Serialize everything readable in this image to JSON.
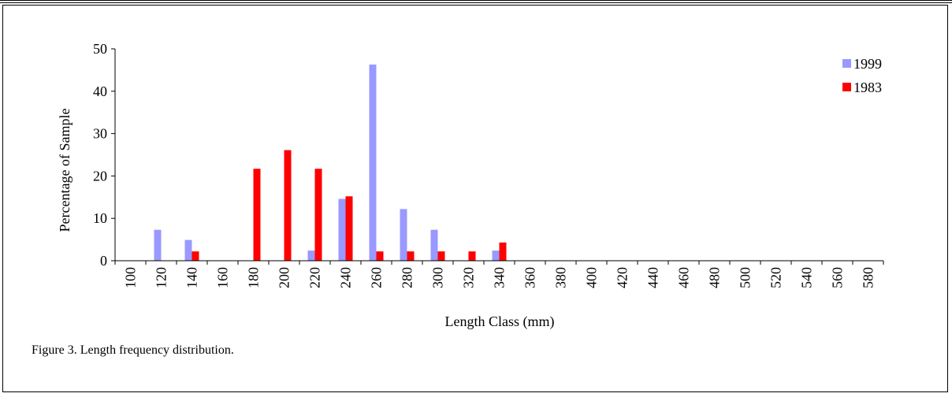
{
  "caption": "Figure 3. Length frequency distribution.",
  "colors": {
    "1999": "#9999ff",
    "1983": "#ff0000"
  },
  "chart_data": {
    "type": "bar",
    "categories": [
      "100",
      "120",
      "140",
      "160",
      "180",
      "200",
      "220",
      "240",
      "260",
      "280",
      "300",
      "320",
      "340",
      "360",
      "380",
      "400",
      "420",
      "440",
      "460",
      "480",
      "500",
      "520",
      "540",
      "560",
      "580"
    ],
    "series": [
      {
        "name": "1999",
        "values": [
          0,
          7.3,
          4.9,
          0,
          0,
          0,
          2.4,
          14.6,
          46.3,
          12.2,
          7.3,
          0,
          2.4,
          0,
          0,
          0,
          0,
          0,
          0,
          0,
          0,
          0,
          0,
          0,
          0
        ]
      },
      {
        "name": "1983",
        "values": [
          0,
          0,
          2.2,
          0,
          21.7,
          26.1,
          21.7,
          15.2,
          2.2,
          2.2,
          2.2,
          2.2,
          4.3,
          0,
          0,
          0,
          0,
          0,
          0,
          0,
          0,
          0,
          0,
          0,
          0
        ]
      }
    ],
    "title": "",
    "xlabel": "Length Class  (mm)",
    "ylabel": "Percentage of  Sample",
    "ylim": [
      0,
      50
    ],
    "yticks": [
      "0",
      "10",
      "20",
      "30",
      "40",
      "50"
    ],
    "legend_position": "top-right",
    "grid": false
  }
}
